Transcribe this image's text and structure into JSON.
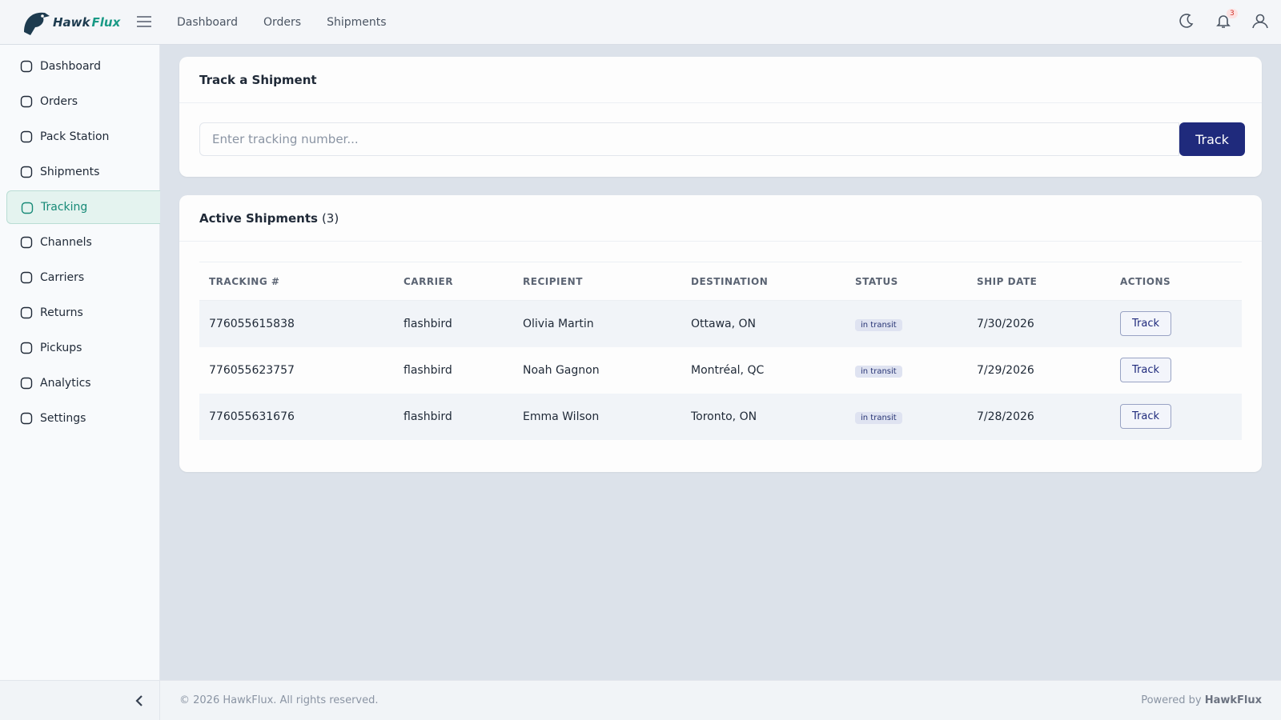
{
  "logo": {
    "part1": "Hawk",
    "part2": "Flux"
  },
  "top_nav": [
    "Dashboard",
    "Orders",
    "Shipments"
  ],
  "notifications": 3,
  "sidebar": [
    "Dashboard",
    "Orders",
    "Pack Station",
    "Shipments",
    "Tracking",
    "Channels",
    "Carriers",
    "Returns",
    "Pickups",
    "Analytics",
    "Settings"
  ],
  "active_item": "Tracking",
  "track_card": {
    "title": "Track a Shipment",
    "placeholder": "Enter tracking number...",
    "button": "Track"
  },
  "shipments_card": {
    "title": "Active Shipments",
    "count": "(3)",
    "table": {
      "headers": [
        "TRACKING #",
        "CARRIER",
        "RECIPIENT",
        "DESTINATION",
        "STATUS",
        "SHIP DATE",
        "ACTIONS"
      ],
      "rows": [
        [
          "776055615838",
          "flashbird",
          "Olivia Martin",
          "Ottawa, ON",
          "in transit",
          "7/30/2026",
          "Track"
        ],
        [
          "776055623757",
          "flashbird",
          "Noah Gagnon",
          "Montréal, QC",
          "in transit",
          "7/29/2026",
          "Track"
        ],
        [
          "776055631676",
          "flashbird",
          "Emma Wilson",
          "Toronto, ON",
          "in transit",
          "7/28/2026",
          "Track"
        ]
      ]
    }
  },
  "footer": {
    "copyright": "© 2026 HawkFlux. All rights reserved.",
    "powered_label": "Powered by",
    "powered_brand": "HawkFlux"
  }
}
